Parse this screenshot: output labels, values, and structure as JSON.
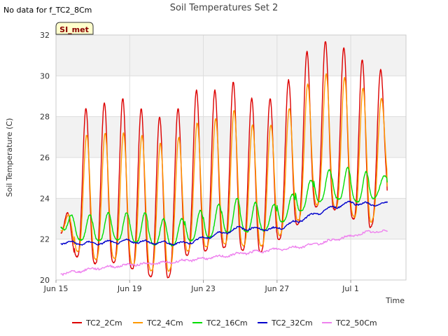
{
  "no_data_note": "No data for f_TC2_8Cm",
  "badge": "SI_met",
  "chart_data": {
    "type": "line",
    "title": "Soil Temperatures Set 2",
    "xlabel": "Time",
    "ylabel": "Soil Temperature (C)",
    "xlim": [
      "2024-06-15",
      "2024-07-04"
    ],
    "ylim": [
      20,
      32
    ],
    "x_ticks": [
      {
        "date": "2024-06-15",
        "label": "Jun 15"
      },
      {
        "date": "2024-06-19",
        "label": "Jun 19"
      },
      {
        "date": "2024-06-23",
        "label": "Jun 23"
      },
      {
        "date": "2024-06-27",
        "label": "Jun 27"
      },
      {
        "date": "2024-07-01",
        "label": "Jul 1"
      }
    ],
    "y_ticks": [
      20,
      22,
      24,
      26,
      28,
      30,
      32
    ],
    "grid": true,
    "shaded_band": [
      22,
      24
    ],
    "legend_position": "bottom",
    "series": [
      {
        "name": "TC2_2Cm",
        "color": "#dd0000",
        "mode": "daily",
        "peak_hour": 15,
        "daily": [
          {
            "date": "2024-06-15",
            "min": 22.6,
            "max": 23.3
          },
          {
            "date": "2024-06-16",
            "min": 21.2,
            "max": 28.4
          },
          {
            "date": "2024-06-17",
            "min": 20.8,
            "max": 28.7
          },
          {
            "date": "2024-06-18",
            "min": 20.9,
            "max": 28.9
          },
          {
            "date": "2024-06-19",
            "min": 20.6,
            "max": 28.4
          },
          {
            "date": "2024-06-20",
            "min": 20.2,
            "max": 28.0
          },
          {
            "date": "2024-06-21",
            "min": 20.0,
            "max": 28.4
          },
          {
            "date": "2024-06-22",
            "min": 21.2,
            "max": 29.3
          },
          {
            "date": "2024-06-23",
            "min": 21.4,
            "max": 29.3
          },
          {
            "date": "2024-06-24",
            "min": 21.6,
            "max": 29.7
          },
          {
            "date": "2024-06-25",
            "min": 21.5,
            "max": 28.9
          },
          {
            "date": "2024-06-26",
            "min": 21.3,
            "max": 28.9
          },
          {
            "date": "2024-06-27",
            "min": 21.9,
            "max": 29.8
          },
          {
            "date": "2024-06-28",
            "min": 22.6,
            "max": 31.2
          },
          {
            "date": "2024-06-29",
            "min": 23.6,
            "max": 31.7
          },
          {
            "date": "2024-06-30",
            "min": 23.5,
            "max": 31.4
          },
          {
            "date": "2024-07-01",
            "min": 23.1,
            "max": 30.8
          },
          {
            "date": "2024-07-02",
            "min": 22.4,
            "max": 30.3
          },
          {
            "date": "2024-07-03",
            "min": 24.4,
            "max": 24.4
          }
        ]
      },
      {
        "name": "TC2_4Cm",
        "color": "#ff9900",
        "mode": "daily",
        "peak_hour": 16,
        "daily": [
          {
            "date": "2024-06-15",
            "min": 22.7,
            "max": 23.2
          },
          {
            "date": "2024-06-16",
            "min": 21.5,
            "max": 27.1
          },
          {
            "date": "2024-06-17",
            "min": 21.0,
            "max": 27.2
          },
          {
            "date": "2024-06-18",
            "min": 21.1,
            "max": 27.2
          },
          {
            "date": "2024-06-19",
            "min": 20.8,
            "max": 27.1
          },
          {
            "date": "2024-06-20",
            "min": 20.5,
            "max": 26.7
          },
          {
            "date": "2024-06-21",
            "min": 20.3,
            "max": 27.0
          },
          {
            "date": "2024-06-22",
            "min": 21.4,
            "max": 27.7
          },
          {
            "date": "2024-06-23",
            "min": 21.6,
            "max": 27.9
          },
          {
            "date": "2024-06-24",
            "min": 21.8,
            "max": 28.3
          },
          {
            "date": "2024-06-25",
            "min": 21.7,
            "max": 27.6
          },
          {
            "date": "2024-06-26",
            "min": 21.6,
            "max": 27.6
          },
          {
            "date": "2024-06-27",
            "min": 22.1,
            "max": 28.4
          },
          {
            "date": "2024-06-28",
            "min": 22.8,
            "max": 29.6
          },
          {
            "date": "2024-06-29",
            "min": 23.7,
            "max": 30.1
          },
          {
            "date": "2024-06-30",
            "min": 23.6,
            "max": 29.9
          },
          {
            "date": "2024-07-01",
            "min": 23.2,
            "max": 29.4
          },
          {
            "date": "2024-07-02",
            "min": 22.6,
            "max": 28.9
          },
          {
            "date": "2024-07-03",
            "min": 24.6,
            "max": 24.6
          }
        ]
      },
      {
        "name": "TC2_16Cm",
        "color": "#00dd00",
        "mode": "daily",
        "peak_hour": 20,
        "daily": [
          {
            "date": "2024-06-15",
            "min": 22.8,
            "max": 23.2
          },
          {
            "date": "2024-06-16",
            "min": 22.0,
            "max": 23.2
          },
          {
            "date": "2024-06-17",
            "min": 21.9,
            "max": 23.3
          },
          {
            "date": "2024-06-18",
            "min": 22.0,
            "max": 23.3
          },
          {
            "date": "2024-06-19",
            "min": 21.9,
            "max": 23.3
          },
          {
            "date": "2024-06-20",
            "min": 21.8,
            "max": 23.0
          },
          {
            "date": "2024-06-21",
            "min": 21.6,
            "max": 23.0
          },
          {
            "date": "2024-06-22",
            "min": 21.9,
            "max": 23.4
          },
          {
            "date": "2024-06-23",
            "min": 22.0,
            "max": 23.7
          },
          {
            "date": "2024-06-24",
            "min": 22.3,
            "max": 24.0
          },
          {
            "date": "2024-06-25",
            "min": 22.4,
            "max": 23.8
          },
          {
            "date": "2024-06-26",
            "min": 22.3,
            "max": 23.7
          },
          {
            "date": "2024-06-27",
            "min": 22.7,
            "max": 24.2
          },
          {
            "date": "2024-06-28",
            "min": 23.2,
            "max": 24.9
          },
          {
            "date": "2024-06-29",
            "min": 23.8,
            "max": 25.4
          },
          {
            "date": "2024-06-30",
            "min": 24.0,
            "max": 25.5
          },
          {
            "date": "2024-07-01",
            "min": 23.9,
            "max": 25.3
          },
          {
            "date": "2024-07-02",
            "min": 23.7,
            "max": 25.1
          },
          {
            "date": "2024-07-03",
            "min": 24.8,
            "max": 24.8
          }
        ]
      },
      {
        "name": "TC2_32Cm",
        "color": "#0000cc",
        "mode": "trend",
        "amp": 0.08,
        "noise": 0.04,
        "points": [
          [
            "2024-06-15T06:00",
            21.85
          ],
          [
            "2024-06-16",
            21.8
          ],
          [
            "2024-06-17",
            21.8
          ],
          [
            "2024-06-18",
            21.85
          ],
          [
            "2024-06-19",
            21.9
          ],
          [
            "2024-06-20",
            21.85
          ],
          [
            "2024-06-21",
            21.8
          ],
          [
            "2024-06-22",
            21.8
          ],
          [
            "2024-06-23",
            22.05
          ],
          [
            "2024-06-24",
            22.3
          ],
          [
            "2024-06-25",
            22.55
          ],
          [
            "2024-06-26",
            22.5
          ],
          [
            "2024-06-27",
            22.5
          ],
          [
            "2024-06-28",
            22.85
          ],
          [
            "2024-06-29",
            23.2
          ],
          [
            "2024-06-30",
            23.55
          ],
          [
            "2024-07-01",
            23.8
          ],
          [
            "2024-07-02",
            23.7
          ],
          [
            "2024-07-02T12:00",
            23.7
          ],
          [
            "2024-07-03",
            23.75
          ]
        ]
      },
      {
        "name": "TC2_50Cm",
        "color": "#ee82ee",
        "mode": "trend",
        "amp": 0.05,
        "noise": 0.05,
        "points": [
          [
            "2024-06-15T06:00",
            20.3
          ],
          [
            "2024-06-16",
            20.4
          ],
          [
            "2024-06-17",
            20.55
          ],
          [
            "2024-06-18",
            20.65
          ],
          [
            "2024-06-19",
            20.75
          ],
          [
            "2024-06-20",
            20.8
          ],
          [
            "2024-06-21",
            20.85
          ],
          [
            "2024-06-22",
            20.95
          ],
          [
            "2024-06-23",
            21.05
          ],
          [
            "2024-06-24",
            21.15
          ],
          [
            "2024-06-25",
            21.3
          ],
          [
            "2024-06-26",
            21.4
          ],
          [
            "2024-06-27",
            21.5
          ],
          [
            "2024-06-28",
            21.6
          ],
          [
            "2024-06-29",
            21.75
          ],
          [
            "2024-06-30",
            21.95
          ],
          [
            "2024-07-01",
            22.15
          ],
          [
            "2024-07-02",
            22.35
          ],
          [
            "2024-07-03",
            22.4
          ]
        ]
      }
    ]
  }
}
